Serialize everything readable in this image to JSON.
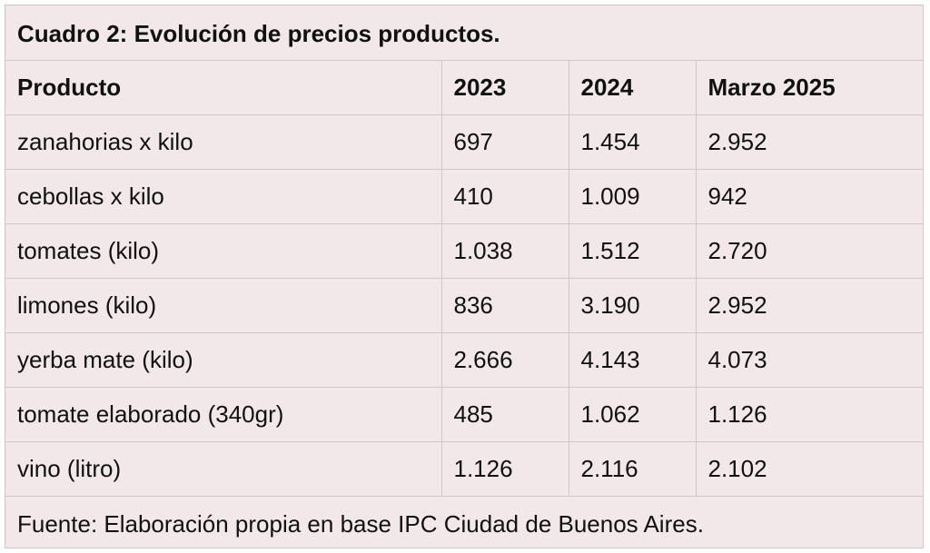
{
  "title": "Cuadro 2: Evolución de precios productos.",
  "headers": [
    "Producto",
    "2023",
    "2024",
    "Marzo 2025"
  ],
  "rows": [
    [
      "zanahorias x kilo",
      "697",
      "1.454",
      "2.952"
    ],
    [
      "cebollas x kilo",
      "410",
      "1.009",
      "942"
    ],
    [
      "tomates (kilo)",
      "1.038",
      "1.512",
      "2.720"
    ],
    [
      "limones (kilo)",
      "836",
      "3.190",
      "2.952"
    ],
    [
      "yerba mate (kilo)",
      "2.666",
      "4.143",
      "4.073"
    ],
    [
      "tomate elaborado (340gr)",
      "485",
      "1.062",
      "1.126"
    ],
    [
      "vino (litro)",
      "1.126",
      "2.116",
      "2.102"
    ]
  ],
  "footer": "Fuente: Elaboración propia en base IPC Ciudad de Buenos Aires.",
  "colors": {
    "background": "#f2e8e9",
    "border": "#cfc6c7",
    "text": "#111111"
  }
}
